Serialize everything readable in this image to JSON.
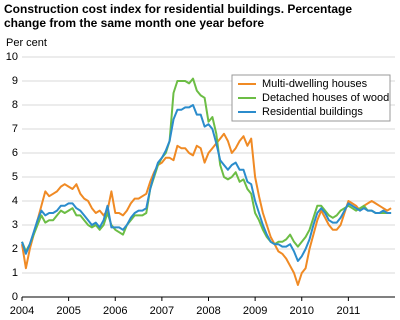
{
  "chart_data": {
    "type": "line",
    "title": "Construction cost index for residential buildings. Percentage change from the same month one year before",
    "y_label": "Per cent",
    "categories": [
      "2004",
      null,
      null,
      null,
      null,
      null,
      null,
      null,
      null,
      null,
      null,
      null,
      "2005",
      null,
      null,
      null,
      null,
      null,
      null,
      null,
      null,
      null,
      null,
      null,
      "2006",
      null,
      null,
      null,
      null,
      null,
      null,
      null,
      null,
      null,
      null,
      null,
      "2007",
      null,
      null,
      null,
      null,
      null,
      null,
      null,
      null,
      null,
      null,
      null,
      "2008",
      null,
      null,
      null,
      null,
      null,
      null,
      null,
      null,
      null,
      null,
      null,
      "2009",
      null,
      null,
      null,
      null,
      null,
      null,
      null,
      null,
      null,
      null,
      null,
      "2010",
      null,
      null,
      null,
      null,
      null,
      null,
      null,
      null,
      null,
      null,
      null,
      "2011",
      null,
      null,
      null,
      null,
      null,
      null,
      null,
      null,
      null,
      null,
      null
    ],
    "series": [
      {
        "name": "Multi-dwelling houses",
        "color": "#f08a24",
        "values": [
          2.2,
          1.2,
          2.0,
          2.6,
          3.2,
          3.8,
          4.4,
          4.2,
          4.3,
          4.4,
          4.6,
          4.7,
          4.6,
          4.5,
          4.7,
          4.3,
          4.1,
          4.0,
          3.7,
          3.5,
          3.6,
          3.4,
          3.6,
          4.4,
          3.5,
          3.5,
          3.4,
          3.6,
          3.9,
          4.1,
          4.1,
          4.2,
          4.3,
          4.8,
          5.2,
          5.5,
          5.6,
          5.8,
          5.8,
          5.7,
          6.3,
          6.2,
          6.2,
          6.0,
          5.9,
          6.3,
          6.2,
          5.6,
          6.0,
          6.2,
          6.4,
          6.6,
          6.8,
          6.5,
          6.0,
          6.2,
          6.5,
          6.7,
          6.3,
          6.6,
          5.0,
          4.2,
          3.5,
          3.0,
          2.5,
          2.2,
          1.9,
          1.8,
          1.6,
          1.3,
          1.0,
          0.5,
          1.0,
          1.2,
          2.0,
          2.6,
          3.2,
          3.6,
          3.3,
          3.0,
          2.8,
          2.8,
          3.0,
          3.5,
          4.0,
          3.9,
          3.8,
          3.6,
          3.8,
          3.9,
          4.0,
          3.9,
          3.8,
          3.7,
          3.6,
          3.7
        ]
      },
      {
        "name": "Detached houses of wood",
        "color": "#6cbd45",
        "values": [
          2.3,
          1.9,
          2.2,
          2.6,
          3.0,
          3.4,
          3.1,
          3.2,
          3.2,
          3.4,
          3.6,
          3.5,
          3.6,
          3.7,
          3.4,
          3.4,
          3.2,
          3.0,
          2.9,
          3.0,
          2.8,
          3.0,
          3.5,
          3.0,
          2.8,
          2.7,
          2.6,
          3.0,
          3.2,
          3.4,
          3.4,
          3.4,
          3.5,
          4.5,
          5.0,
          5.5,
          5.8,
          6.0,
          6.5,
          8.5,
          9.0,
          9.0,
          9.0,
          8.9,
          9.1,
          8.6,
          8.4,
          8.3,
          7.3,
          7.5,
          6.8,
          5.5,
          5.0,
          4.9,
          5.0,
          5.2,
          4.8,
          4.9,
          4.5,
          4.3,
          3.5,
          3.2,
          2.8,
          2.5,
          2.3,
          2.2,
          2.3,
          2.3,
          2.4,
          2.6,
          2.3,
          2.1,
          2.3,
          2.5,
          2.8,
          3.3,
          3.8,
          3.8,
          3.6,
          3.4,
          3.3,
          3.4,
          3.6,
          3.7,
          3.8,
          3.7,
          3.6,
          3.7,
          3.8,
          3.6,
          3.6,
          3.5,
          3.5,
          3.5,
          3.5,
          3.5
        ]
      },
      {
        "name": "Residential buildings",
        "color": "#2b8ccc",
        "values": [
          2.3,
          1.8,
          2.2,
          2.7,
          3.2,
          3.6,
          3.4,
          3.5,
          3.5,
          3.6,
          3.8,
          3.8,
          3.9,
          3.9,
          3.7,
          3.6,
          3.4,
          3.2,
          3.0,
          3.1,
          2.9,
          3.2,
          3.8,
          2.9,
          2.9,
          2.9,
          2.8,
          3.0,
          3.3,
          3.5,
          3.6,
          3.6,
          3.7,
          4.5,
          5.1,
          5.6,
          5.8,
          6.1,
          6.5,
          7.4,
          7.8,
          7.8,
          7.9,
          7.9,
          8.0,
          7.6,
          7.6,
          7.1,
          7.2,
          7.0,
          6.4,
          5.7,
          5.5,
          5.3,
          5.5,
          5.6,
          5.3,
          5.3,
          4.8,
          4.7,
          4.0,
          3.5,
          3.0,
          2.6,
          2.3,
          2.2,
          2.2,
          2.1,
          2.1,
          2.2,
          1.9,
          1.5,
          1.7,
          2.0,
          2.4,
          3.0,
          3.5,
          3.7,
          3.5,
          3.2,
          3.1,
          3.1,
          3.3,
          3.6,
          3.9,
          3.8,
          3.7,
          3.6,
          3.7,
          3.6,
          3.6,
          3.5,
          3.5,
          3.6,
          3.5,
          3.5
        ]
      }
    ],
    "ylim": [
      0,
      10
    ],
    "yticks": [
      0,
      1,
      2,
      3,
      4,
      5,
      6,
      7,
      8,
      9,
      10
    ],
    "grid": true
  }
}
